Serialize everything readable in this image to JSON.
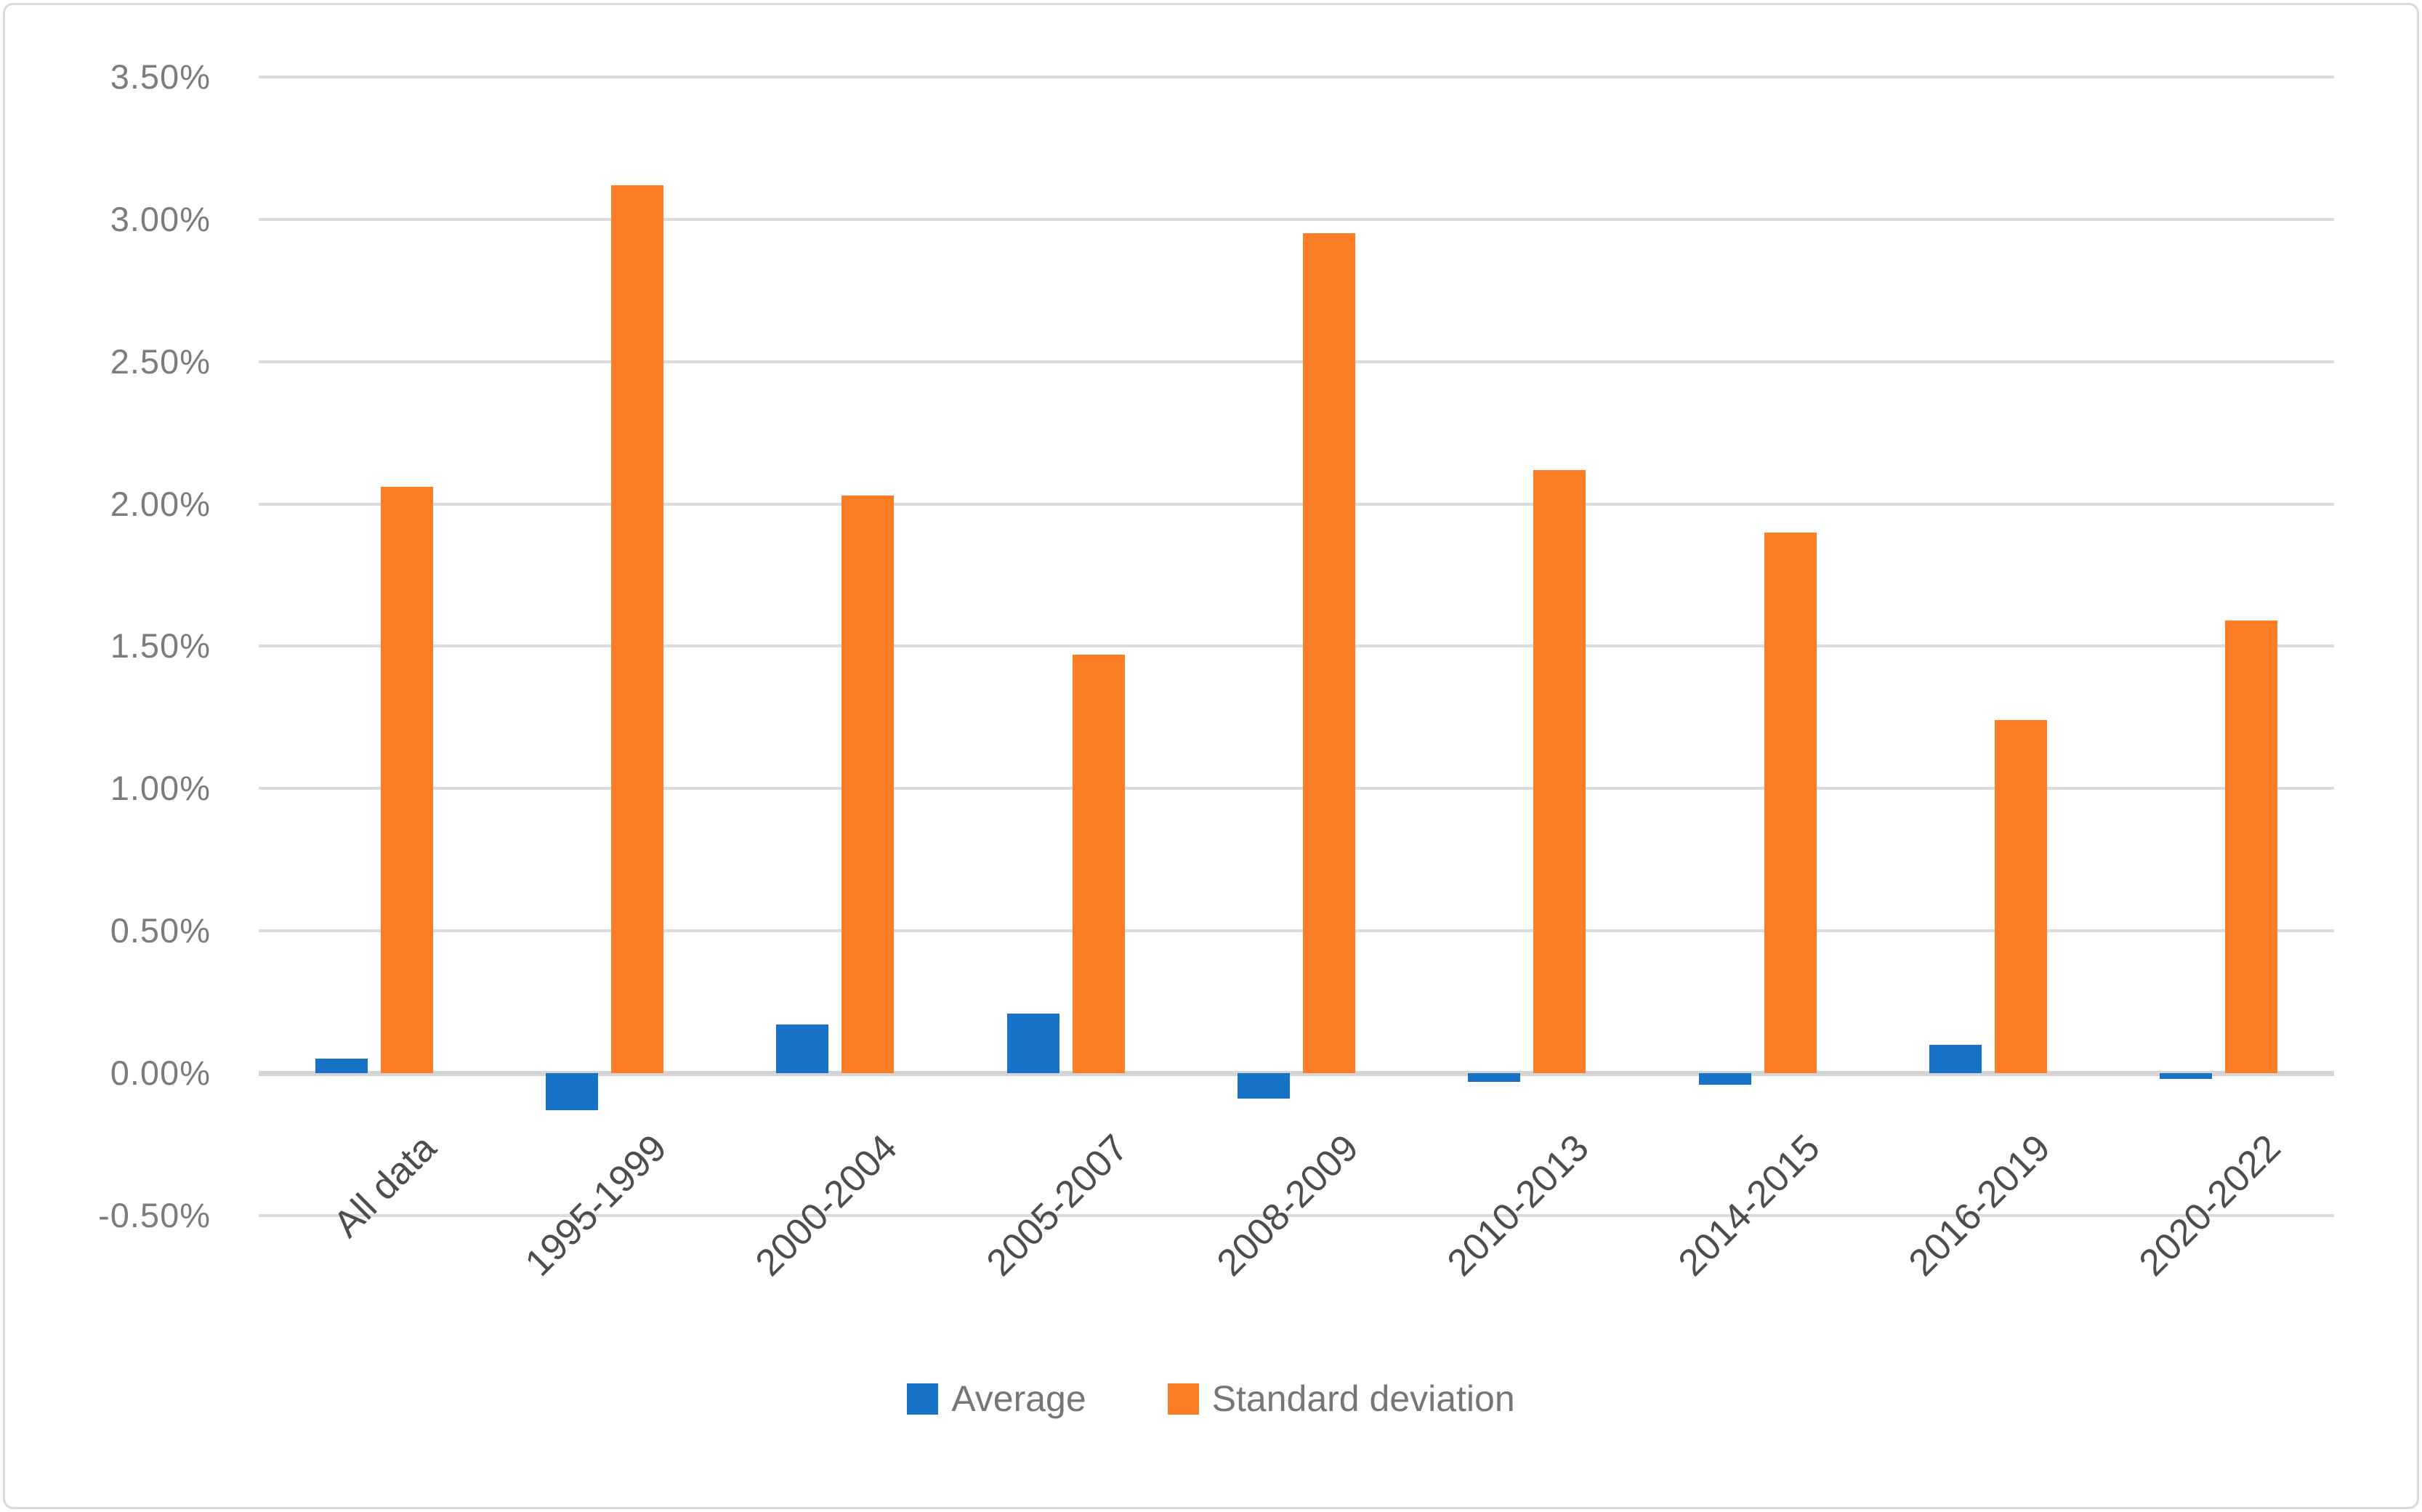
{
  "chart_data": {
    "type": "bar",
    "title": "",
    "xlabel": "",
    "ylabel": "",
    "categories": [
      "All data",
      "1995-1999",
      "2000-2004",
      "2005-2007",
      "2008-2009",
      "2010-2013",
      "2014-2015",
      "2016-2019",
      "2020-2022"
    ],
    "series": [
      {
        "name": "Average",
        "color": "#1873C7",
        "values_percent": [
          0.05,
          -0.13,
          0.17,
          0.21,
          -0.09,
          -0.03,
          -0.04,
          0.1,
          -0.02
        ]
      },
      {
        "name": "Standard deviation",
        "color": "#FC7D26",
        "values_percent": [
          2.06,
          3.12,
          2.03,
          1.47,
          2.95,
          2.12,
          1.9,
          1.24,
          1.59
        ]
      }
    ],
    "y_axis": {
      "min_percent": -0.5,
      "max_percent": 3.5,
      "step_percent": 0.5,
      "tick_labels": [
        "3.50%",
        "3.00%",
        "2.50%",
        "2.00%",
        "1.50%",
        "1.00%",
        "0.50%",
        "0.00%",
        "-0.50%"
      ]
    },
    "grid": true,
    "x_tick_rotation_deg": 45,
    "legend_position": "bottom"
  },
  "style": {
    "background": "#FFFFFF",
    "frame_border_color": "#D9D9D9",
    "gridline_color": "#DBDBDB",
    "zero_axis_color": "#D5D5D5",
    "y_tick_text_color": "#7C7C7C",
    "x_tick_text_color": "#4D4D4D",
    "legend_text_color": "#767676"
  }
}
